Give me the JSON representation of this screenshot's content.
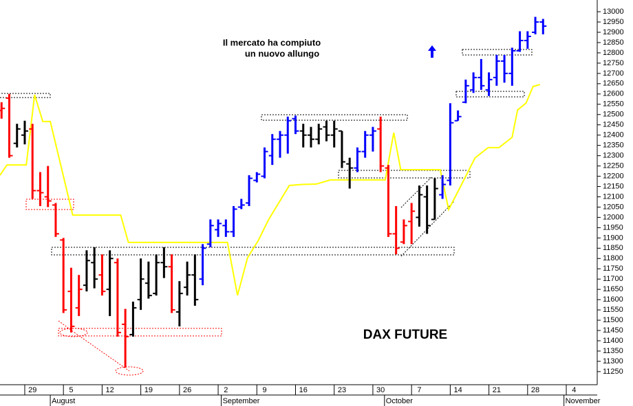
{
  "chart_data": {
    "type": "ohlc",
    "title": "DAX FUTURE",
    "annotation": [
      "Il mercato ha compiuto",
      "un nuovo allungo"
    ],
    "annotation_color": "#0000ff",
    "x": [
      -4,
      -3,
      -2,
      -1,
      0,
      1,
      2,
      3,
      4,
      5,
      6,
      7,
      8,
      9,
      10,
      11,
      12,
      13,
      14,
      15,
      16,
      17,
      18,
      19,
      20,
      21,
      22,
      23,
      24,
      25,
      26,
      27,
      28,
      29,
      30,
      31,
      32,
      33,
      34,
      35,
      36,
      37,
      38,
      39,
      40,
      41,
      42,
      43,
      44,
      45,
      46,
      47,
      48,
      49,
      50,
      51,
      52,
      53,
      54,
      55,
      56,
      57,
      58,
      59,
      60,
      61,
      62,
      63,
      64,
      65,
      66
    ],
    "open": [
      12520,
      12580,
      12360,
      12400,
      12430,
      12130,
      12100,
      12060,
      11890,
      11640,
      11560,
      11670,
      11780,
      11720,
      11650,
      11780,
      11480,
      11430,
      11600,
      11680,
      11630,
      11780,
      11760,
      11540,
      11660,
      11720,
      11700,
      11870,
      11940,
      11960,
      11930,
      12050,
      12070,
      12180,
      12200,
      12300,
      12380,
      12400,
      12480,
      12420,
      12400,
      12380,
      12440,
      12400,
      12420,
      12260,
      12240,
      12320,
      12400,
      12430,
      12240,
      11920,
      11880,
      11980,
      12000,
      12100,
      11990,
      12110,
      12180,
      12470,
      12560,
      12620,
      12680,
      12620,
      12680,
      12760,
      12700,
      12810,
      12860,
      12900,
      12950
    ],
    "high": [
      12560,
      12600,
      12455,
      12470,
      12455,
      12220,
      12250,
      12070,
      11900,
      11755,
      11720,
      11840,
      11855,
      11820,
      11840,
      11800,
      11555,
      11590,
      11800,
      11785,
      11820,
      11855,
      11820,
      11690,
      11785,
      11820,
      11870,
      11990,
      11990,
      11990,
      12055,
      12090,
      12205,
      12220,
      12340,
      12405,
      12420,
      12490,
      12495,
      12455,
      12440,
      12455,
      12470,
      12470,
      12420,
      12290,
      12340,
      12420,
      12440,
      12490,
      12255,
      12055,
      11990,
      12070,
      12155,
      12155,
      12190,
      12205,
      12555,
      12520,
      12670,
      12705,
      12770,
      12705,
      12790,
      12790,
      12825,
      12905,
      12905,
      12975,
      12965
    ],
    "low": [
      12480,
      12290,
      12340,
      12355,
      12090,
      12055,
      12050,
      11905,
      11535,
      11440,
      11520,
      11640,
      11655,
      11620,
      11520,
      11420,
      11270,
      11420,
      11550,
      11605,
      11620,
      11705,
      11535,
      11470,
      11620,
      11570,
      11670,
      11855,
      11905,
      11905,
      11905,
      12040,
      12055,
      12170,
      12190,
      12255,
      12290,
      12310,
      12405,
      12340,
      12340,
      12355,
      12370,
      12340,
      12240,
      12140,
      12220,
      12290,
      12320,
      12220,
      11905,
      11820,
      11870,
      11870,
      11955,
      11920,
      11990,
      12090,
      12155,
      12470,
      12555,
      12605,
      12620,
      12590,
      12640,
      12655,
      12640,
      12805,
      12820,
      12890,
      12890
    ],
    "close": [
      12530,
      12300,
      12430,
      12420,
      12130,
      12120,
      12080,
      11920,
      11550,
      11470,
      11650,
      11790,
      11700,
      11640,
      11800,
      11440,
      11420,
      11560,
      11700,
      11620,
      11780,
      11760,
      11550,
      11630,
      11720,
      11600,
      11850,
      11960,
      11970,
      11930,
      12040,
      12060,
      12190,
      12210,
      12320,
      12380,
      12400,
      12470,
      12420,
      12400,
      12380,
      12430,
      12400,
      12430,
      12270,
      12240,
      12320,
      12400,
      12420,
      12250,
      11920,
      11850,
      11960,
      12030,
      12110,
      11960,
      12140,
      12160,
      12460,
      12490,
      12640,
      12680,
      12640,
      12670,
      12760,
      12700,
      12810,
      12860,
      12880,
      12950,
      12930
    ],
    "colors": [
      "#ff0000",
      "#ff0000",
      "#000000",
      "#000000",
      "#ff0000",
      "#ff0000",
      "#ff0000",
      "#ff0000",
      "#ff0000",
      "#ff0000",
      "#ff0000",
      "#000000",
      "#000000",
      "#ff0000",
      "#000000",
      "#ff0000",
      "#ff0000",
      "#000000",
      "#000000",
      "#000000",
      "#000000",
      "#000000",
      "#ff0000",
      "#000000",
      "#000000",
      "#000000",
      "#0000ff",
      "#0000ff",
      "#0000ff",
      "#0000ff",
      "#0000ff",
      "#0000ff",
      "#0000ff",
      "#0000ff",
      "#0000ff",
      "#0000ff",
      "#0000ff",
      "#0000ff",
      "#0000ff",
      "#000000",
      "#000000",
      "#000000",
      "#000000",
      "#000000",
      "#000000",
      "#000000",
      "#0000ff",
      "#0000ff",
      "#0000ff",
      "#ff0000",
      "#ff0000",
      "#ff0000",
      "#ff0000",
      "#ff0000",
      "#000000",
      "#000000",
      "#000000",
      "#0000ff",
      "#0000ff",
      "#0000ff",
      "#0000ff",
      "#0000ff",
      "#0000ff",
      "#0000ff",
      "#0000ff",
      "#0000ff",
      "#0000ff",
      "#0000ff",
      "#0000ff",
      "#0000ff",
      "#0000ff"
    ],
    "overlay": {
      "type": "line",
      "color": "#ffff00",
      "x": [
        -4.2,
        -3.3,
        -0.8,
        0.27,
        1.33,
        2.3,
        5.2,
        11.4,
        12.4,
        25.2,
        26.5,
        27.8,
        29.2,
        30.5,
        33.2,
        34.9,
        36.7,
        38.5,
        45.6,
        46.7,
        47.6,
        52.7,
        53.8,
        55.4,
        57.2,
        58.9,
        60.3,
        62.0,
        62.7,
        63.8,
        64.7,
        65.6
      ],
      "values": [
        12205,
        12255,
        12255,
        12596,
        12466,
        12466,
        12011,
        12011,
        11878,
        11878,
        11621,
        11804,
        11888,
        11988,
        12155,
        12160,
        12162,
        12182,
        12182,
        12412,
        12232,
        12232,
        12038,
        12155,
        12289,
        12339,
        12339,
        12389,
        12522,
        12556,
        12636,
        12646
      ]
    },
    "xlim": [
      -4.2,
      73
    ],
    "xticks": [
      {
        "value": 0,
        "label": "29"
      },
      {
        "value": 5,
        "label": "5"
      },
      {
        "value": 10,
        "label": "12"
      },
      {
        "value": 15,
        "label": "19"
      },
      {
        "value": 20,
        "label": "26"
      },
      {
        "value": 25,
        "label": "2"
      },
      {
        "value": 30,
        "label": "9"
      },
      {
        "value": 35,
        "label": "16"
      },
      {
        "value": 40,
        "label": "23"
      },
      {
        "value": 45,
        "label": "30"
      },
      {
        "value": 50,
        "label": "7"
      },
      {
        "value": 55,
        "label": "14"
      },
      {
        "value": 60,
        "label": "21"
      },
      {
        "value": 65,
        "label": "28"
      },
      {
        "value": 70,
        "label": "4"
      }
    ],
    "month_ticks": [
      {
        "value": 2.3,
        "label": "August"
      },
      {
        "value": 24.4,
        "label": "September"
      },
      {
        "value": 45.5,
        "label": "October"
      },
      {
        "value": 68.7,
        "label": "November"
      }
    ],
    "ylim": [
      11193,
      13057
    ],
    "yticks": [
      11250,
      11300,
      11350,
      11400,
      11450,
      11500,
      11550,
      11600,
      11650,
      11700,
      11750,
      11800,
      11850,
      11900,
      11950,
      12000,
      12050,
      12100,
      12150,
      12200,
      12250,
      12300,
      12350,
      12400,
      12450,
      12500,
      12550,
      12600,
      12650,
      12700,
      12750,
      12800,
      12850,
      12900,
      12950,
      13000
    ]
  }
}
